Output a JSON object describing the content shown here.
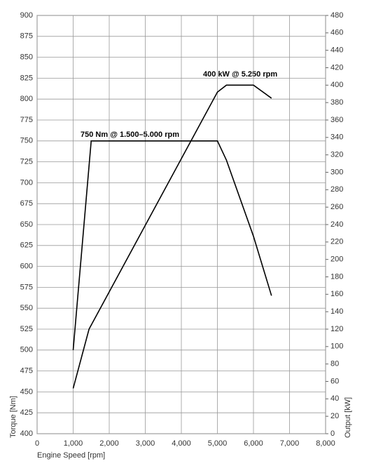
{
  "chart_data": {
    "type": "line",
    "xlabel": "Engine Speed [rpm]",
    "ylabel": "Torque [Nm]",
    "y2label": "Output [kW]",
    "annotations": [
      "750 Nm @ 1.500–5.000 rpm",
      "400 kW @ 5.250 rpm"
    ],
    "xlim": [
      0,
      8000
    ],
    "xticks": [
      0,
      {
        "value": 1000,
        "label": "1,000"
      },
      {
        "value": 2000,
        "label": "2,000"
      },
      {
        "value": 3000,
        "label": "3,000"
      },
      {
        "value": 4000,
        "label": "4,000"
      },
      {
        "value": 5000,
        "label": "5,000"
      },
      {
        "value": 6000,
        "label": "6,000"
      },
      {
        "value": 7000,
        "label": "7,000"
      },
      {
        "value": 8000,
        "label": "8,000"
      }
    ],
    "ylim": [
      400,
      900
    ],
    "yticks": [
      400,
      425,
      450,
      475,
      500,
      525,
      550,
      575,
      600,
      625,
      650,
      675,
      700,
      725,
      750,
      775,
      800,
      825,
      850,
      875,
      900
    ],
    "y2lim": [
      0,
      480
    ],
    "y2ticks": [
      0,
      20,
      40,
      60,
      80,
      100,
      120,
      140,
      160,
      180,
      200,
      220,
      240,
      260,
      280,
      300,
      320,
      340,
      360,
      380,
      400,
      420,
      440,
      460,
      480
    ],
    "grid": true,
    "series": [
      {
        "name": "Torque",
        "color": "#000000",
        "x": [
          1000,
          1500,
          5000,
          5250,
          6000,
          6500
        ],
        "values": [
          500,
          750,
          750,
          727,
          636,
          565
        ]
      },
      {
        "name": "Output",
        "color": "#000000",
        "axis": "y2",
        "x": [
          1000,
          1440,
          5000,
          5250,
          6000,
          6500
        ],
        "values": [
          52,
          120,
          392,
          400,
          400,
          385
        ]
      }
    ]
  }
}
